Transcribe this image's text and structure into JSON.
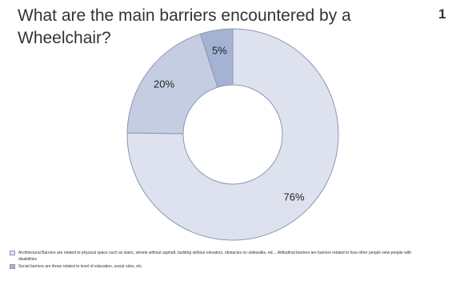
{
  "title": "What are the main barriers encountered by a Wheelchair?",
  "page_number": "1",
  "colors": {
    "slice_main": "#dde2ee",
    "slice_second": "#c4cde2",
    "slice_third": "#a4b3d4",
    "stroke": "#8c96b0"
  },
  "chart_data": {
    "type": "pie",
    "style": "donut",
    "title": "What are the main barriers encountered by a Wheelchair?",
    "slices": [
      {
        "label": "76%",
        "value": 76,
        "color": "#dde2ee"
      },
      {
        "label": "20%",
        "value": 20,
        "color": "#c4cde2"
      },
      {
        "label": "5%",
        "value": 5,
        "color": "#a4b3d4"
      }
    ],
    "legend_placement": "bottom",
    "legend": [
      {
        "text": "Architectural Barriers are related to physical space such as stairs, streets without asphalt, building without elevators, obstacles on sidewalks, etc... Attitudinal barriers are barriers related to how other people view people with disabilities",
        "color": "#dde2ee"
      },
      {
        "text": "Social barriers are those related to level of education, social rules, etc.",
        "color": "#a4b3d4"
      }
    ]
  }
}
